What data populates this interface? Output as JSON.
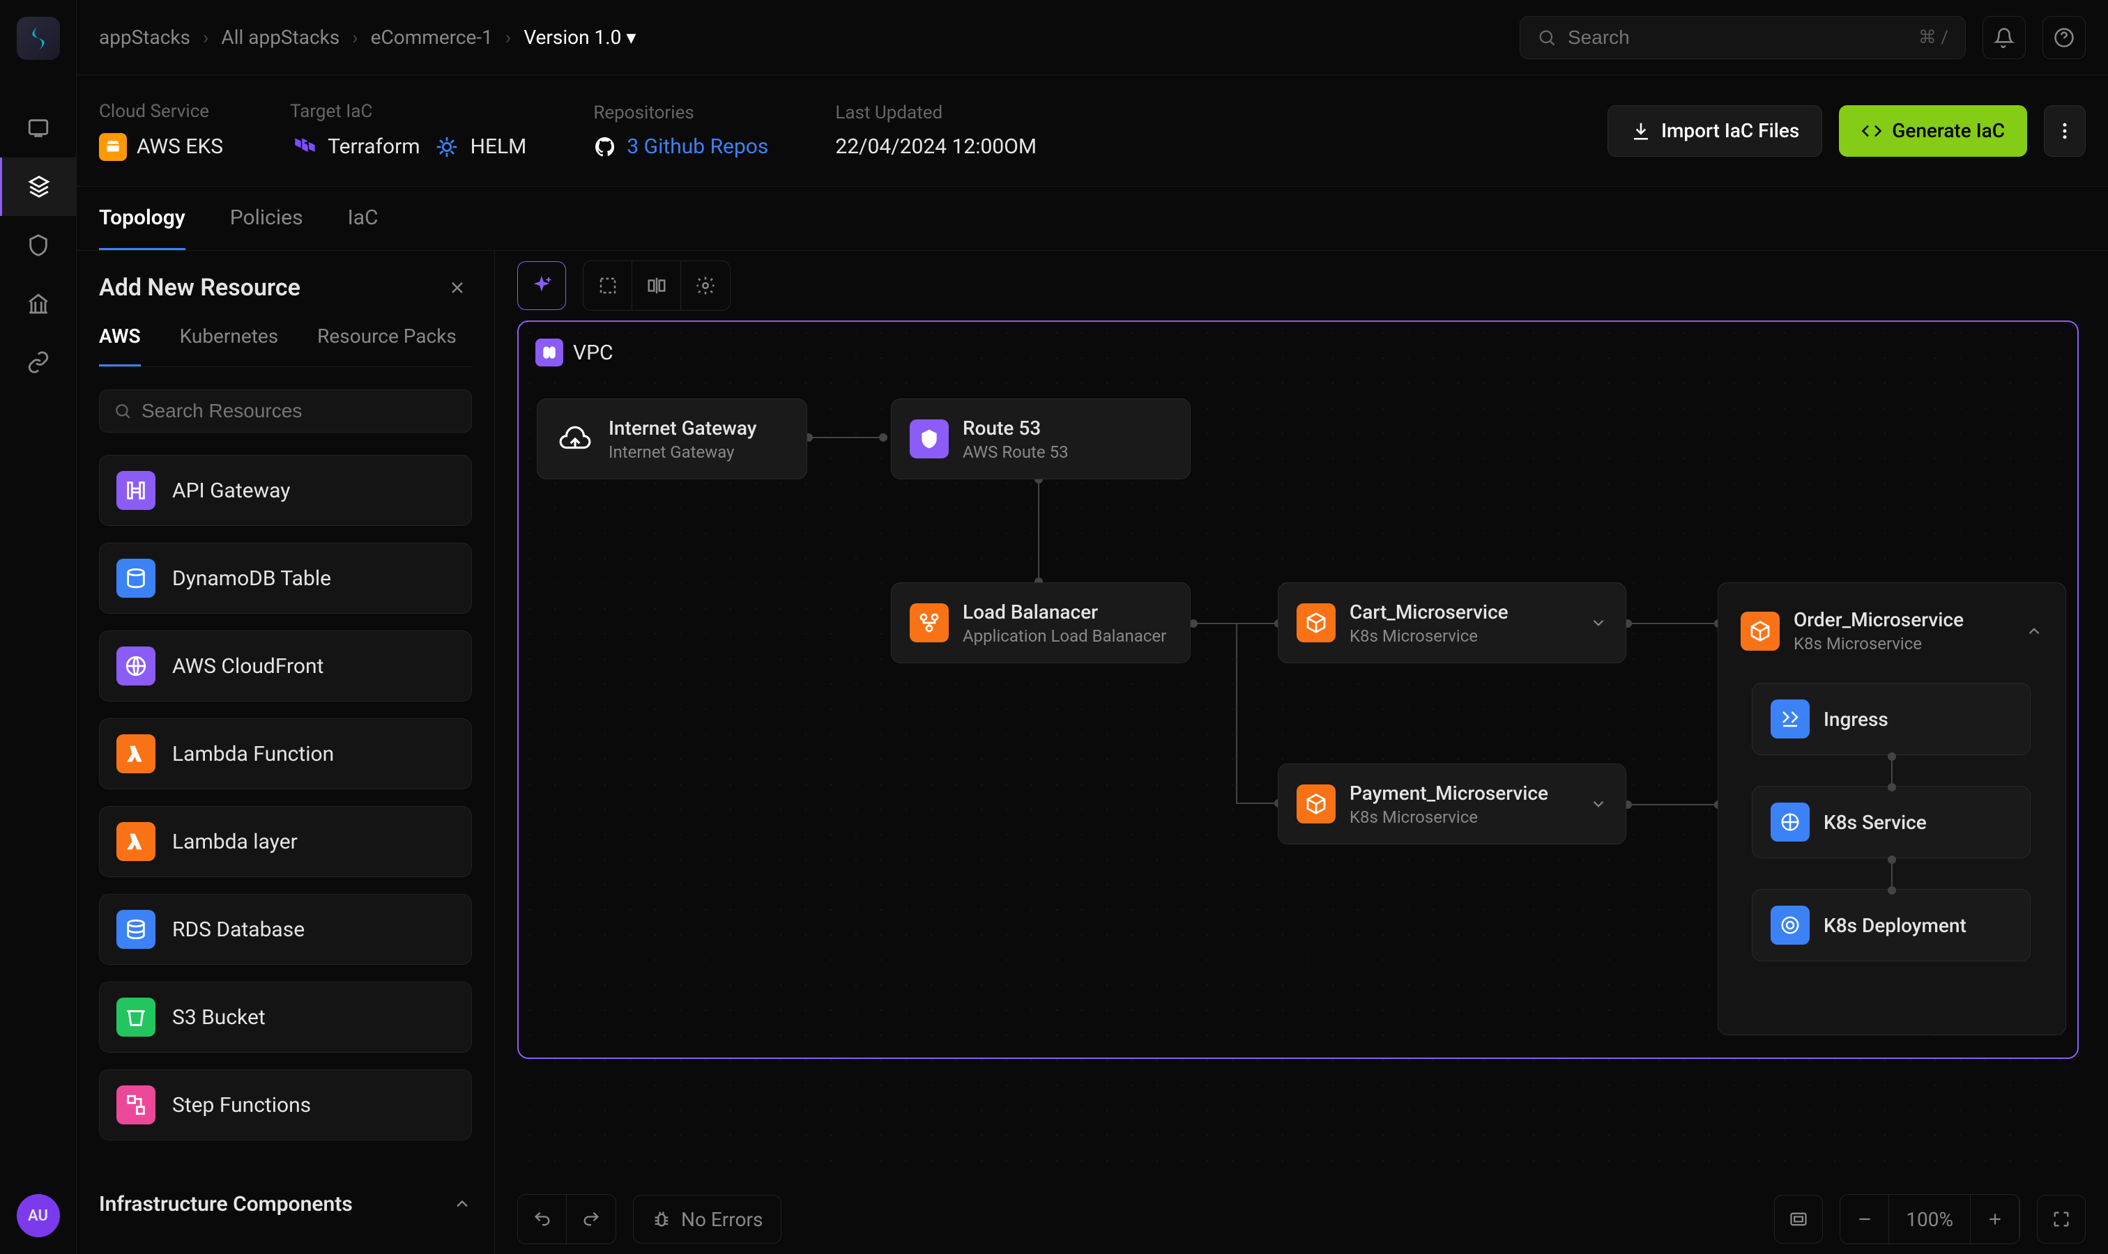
{
  "breadcrumbs": [
    "appStacks",
    "All appStacks",
    "eCommerce-1",
    "Version 1.0"
  ],
  "search": {
    "placeholder": "Search",
    "kbd": "⌘ /"
  },
  "info": {
    "cloud_service_label": "Cloud Service",
    "cloud_service_value": "AWS EKS",
    "target_iac_label": "Target IaC",
    "terraform": "Terraform",
    "helm": "HELM",
    "repos_label": "Repositories",
    "repos_value": "3 Github Repos",
    "last_updated_label": "Last Updated",
    "last_updated_value": "22/04/2024 12:00OM"
  },
  "actions": {
    "import": "Import IaC Files",
    "generate": "Generate IaC"
  },
  "tabs": [
    "Topology",
    "Policies",
    "IaC"
  ],
  "panel": {
    "title": "Add New Resource",
    "tabs": [
      "AWS",
      "Kubernetes",
      "Resource Packs"
    ],
    "search_placeholder": "Search Resources",
    "footer": "Infrastructure Components",
    "resources": [
      {
        "label": "API Gateway",
        "color": "#8b5cf6"
      },
      {
        "label": "DynamoDB Table",
        "color": "#3b82f6"
      },
      {
        "label": "AWS CloudFront",
        "color": "#8b5cf6"
      },
      {
        "label": "Lambda Function",
        "color": "#f97316"
      },
      {
        "label": "Lambda layer",
        "color": "#f97316"
      },
      {
        "label": "RDS Database",
        "color": "#3b82f6"
      },
      {
        "label": "S3 Bucket",
        "color": "#22c55e"
      },
      {
        "label": "Step Functions",
        "color": "#ec4899"
      }
    ]
  },
  "canvas": {
    "vpc_label": "VPC",
    "nodes": {
      "igw": {
        "title": "Internet Gateway",
        "sub": "Internet Gateway"
      },
      "route53": {
        "title": "Route 53",
        "sub": "AWS Route 53"
      },
      "lb": {
        "title": "Load Balanacer",
        "sub": "Application Load Balanacer"
      },
      "cart": {
        "title": "Cart_Microservice",
        "sub": "K8s Microservice"
      },
      "payment": {
        "title": "Payment_Microservice",
        "sub": "K8s Microservice"
      },
      "order": {
        "title": "Order_Microservice",
        "sub": "K8s Microservice"
      },
      "ingress": "Ingress",
      "k8s_service": "K8s Service",
      "k8s_deployment": "K8s Deployment"
    }
  },
  "status": {
    "no_errors": "No Errors",
    "zoom": "100%"
  },
  "avatar": "AU",
  "colors": {
    "purple": "#8b5cf6",
    "blue": "#3b82f6",
    "orange": "#f97316",
    "green": "#22c55e",
    "pink": "#ec4899",
    "lime": "#84cc16"
  }
}
